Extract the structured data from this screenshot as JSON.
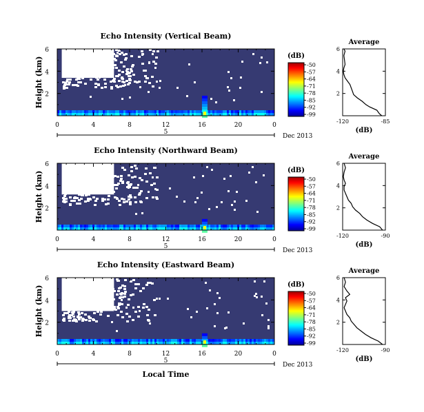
{
  "chart_data": [
    {
      "type": "heatmap",
      "title": "Echo Intensity (Vertical Beam)",
      "ylabel": "Height (km)",
      "xlabel": "",
      "x_ticks": [
        "0",
        "4",
        "8",
        "12",
        "16",
        "20",
        "0"
      ],
      "y_ticks": [
        "6",
        "4",
        "2"
      ],
      "xlim": [
        0,
        24
      ],
      "ylim": [
        0,
        6
      ],
      "date_ticks": [
        "5"
      ],
      "date_suffix": "Dec 2013",
      "colorbar": {
        "label": "(dB)",
        "ticks": [
          "-50",
          "-57",
          "-64",
          "-71",
          "-78",
          "-85",
          "-92",
          "-99"
        ],
        "range": [
          -99,
          -50
        ]
      },
      "missing_block": {
        "t_start": 0.5,
        "t_end": 11,
        "h_start": 3.4,
        "h_end": 6
      },
      "convective_event": {
        "t_center": 16.3,
        "h_top": 1.8
      },
      "profile": {
        "title": "Average",
        "xlabel": "(dB)",
        "x_ticks": [
          "-120",
          "-85"
        ],
        "y_ticks": [
          "6",
          "4",
          "2"
        ],
        "xlim": [
          -120,
          -85
        ],
        "ylim": [
          0,
          6
        ],
        "height": [
          0.0,
          0.2,
          0.5,
          0.8,
          1.0,
          1.3,
          1.6,
          1.9,
          2.2,
          2.5,
          2.8,
          3.1,
          3.4,
          3.7,
          4.0,
          4.3,
          4.6,
          5.0,
          5.4,
          5.8,
          6.0
        ],
        "values": [
          -88,
          -90,
          -92,
          -98,
          -101,
          -104,
          -108,
          -111,
          -112,
          -113,
          -114,
          -116,
          -118,
          -119,
          -119.5,
          -119,
          -118,
          -118.5,
          -119,
          -118,
          -119
        ]
      }
    },
    {
      "type": "heatmap",
      "title": "Echo Intensity (Northward Beam)",
      "ylabel": "Height (km)",
      "xlabel": "",
      "x_ticks": [
        "0",
        "4",
        "8",
        "12",
        "16",
        "20",
        "0"
      ],
      "y_ticks": [
        "6",
        "4",
        "2"
      ],
      "xlim": [
        0,
        24
      ],
      "ylim": [
        0,
        6
      ],
      "date_ticks": [
        "5"
      ],
      "date_suffix": "Dec 2013",
      "colorbar": {
        "label": "(dB)",
        "ticks": [
          "-50",
          "-57",
          "-64",
          "-71",
          "-78",
          "-85",
          "-92",
          "-99"
        ],
        "range": [
          -99,
          -50
        ]
      },
      "missing_block": {
        "t_start": 0.5,
        "t_end": 11,
        "h_start": 3.2,
        "h_end": 6
      },
      "convective_event": {
        "t_center": 16.3,
        "h_top": 1.0
      },
      "profile": {
        "title": "Average",
        "xlabel": "(dB)",
        "x_ticks": [
          "-120",
          "-90"
        ],
        "y_ticks": [
          "6",
          "4",
          "2"
        ],
        "xlim": [
          -120,
          -90
        ],
        "ylim": [
          0,
          6
        ],
        "height": [
          0.0,
          0.3,
          0.6,
          0.9,
          1.2,
          1.5,
          1.8,
          2.1,
          2.4,
          2.7,
          3.0,
          3.3,
          3.6,
          3.9,
          4.2,
          4.5,
          4.8,
          5.2,
          5.6,
          6.0
        ],
        "values": [
          -92,
          -94,
          -99,
          -103,
          -106,
          -108,
          -111,
          -113,
          -114,
          -116,
          -117,
          -118,
          -119,
          -119,
          -118,
          -119,
          -119.5,
          -119,
          -118,
          -119
        ]
      }
    },
    {
      "type": "heatmap",
      "title": "Echo Intensity (Eastward Beam)",
      "ylabel": "Height (km)",
      "xlabel": "Local Time",
      "x_ticks": [
        "0",
        "4",
        "8",
        "12",
        "16",
        "20",
        "0"
      ],
      "y_ticks": [
        "6",
        "4",
        "2"
      ],
      "xlim": [
        0,
        24
      ],
      "ylim": [
        0,
        6
      ],
      "date_ticks": [
        "5"
      ],
      "date_suffix": "Dec 2013",
      "colorbar": {
        "label": "(dB)",
        "ticks": [
          "-50",
          "-57",
          "-64",
          "-71",
          "-78",
          "-85",
          "-92",
          "-99"
        ],
        "range": [
          -99,
          -50
        ]
      },
      "missing_block": {
        "t_start": 0.5,
        "t_end": 11,
        "h_start": 3.0,
        "h_end": 6
      },
      "convective_event": {
        "t_center": 16.3,
        "h_top": 1.0
      },
      "profile": {
        "title": "Average",
        "xlabel": "(dB)",
        "x_ticks": [
          "-120",
          "-90"
        ],
        "y_ticks": [
          "6",
          "4",
          "2"
        ],
        "xlim": [
          -120,
          -90
        ],
        "ylim": [
          0,
          6
        ],
        "height": [
          0.0,
          0.3,
          0.6,
          0.9,
          1.2,
          1.5,
          1.8,
          2.1,
          2.4,
          2.7,
          3.0,
          3.3,
          3.6,
          3.9,
          4.2,
          4.5,
          4.8,
          5.2,
          5.6,
          6.0
        ],
        "values": [
          -92,
          -95,
          -100,
          -104,
          -107,
          -110,
          -112,
          -114,
          -115,
          -117,
          -118,
          -119,
          -118,
          -117,
          -118,
          -115,
          -117,
          -119,
          -118,
          -119
        ]
      }
    }
  ]
}
